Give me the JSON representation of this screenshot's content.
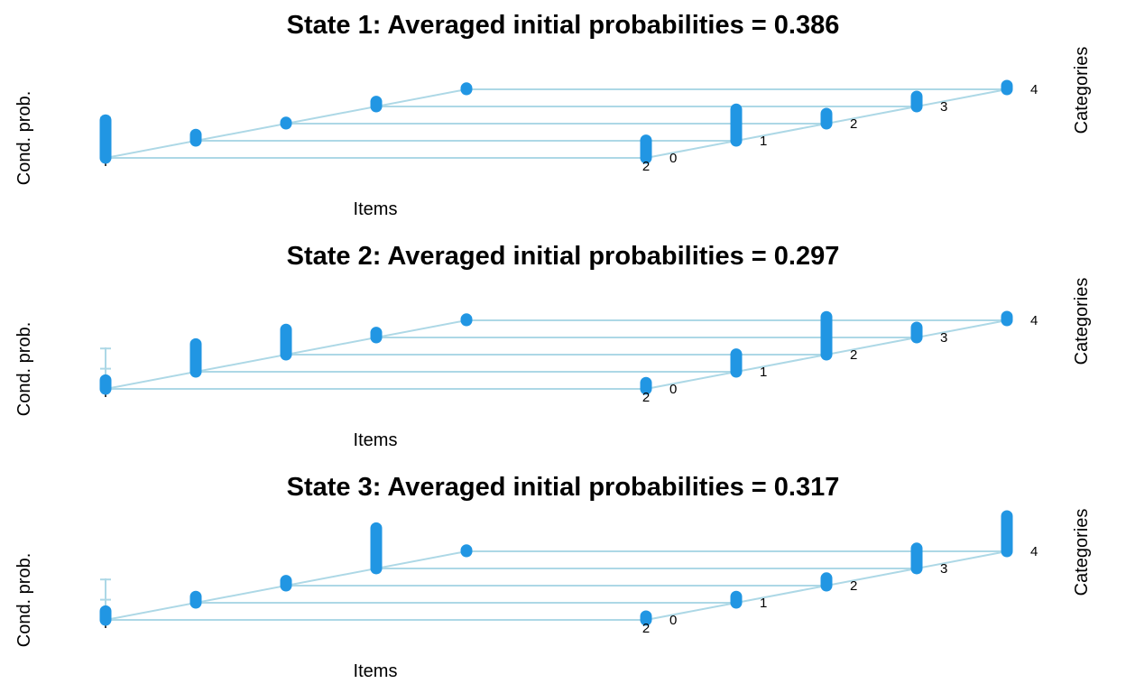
{
  "chart_data": [
    {
      "type": "3d-bar",
      "title": "State 1: Averaged initial probabilities = 0.386",
      "xlabel": "Items",
      "ylabel": "Cond. prob.",
      "zlabel": "Categories",
      "item_ticks": [
        "1",
        "2"
      ],
      "category_ticks": [
        "0",
        "1",
        "2",
        "3",
        "4"
      ],
      "series": [
        {
          "item": "1",
          "values": [
            0.32,
            0.07,
            0.03,
            0.06,
            0.03
          ]
        },
        {
          "item": "2",
          "values": [
            0.16,
            0.27,
            0.1,
            0.1,
            0.05
          ]
        }
      ],
      "colors": {
        "bar": "#2196e3",
        "grid": "#add8e6"
      }
    },
    {
      "type": "3d-bar",
      "title": "State 2: Averaged initial probabilities = 0.297",
      "xlabel": "Items",
      "ylabel": "Cond. prob.",
      "zlabel": "Categories",
      "item_ticks": [
        "1",
        "2"
      ],
      "category_ticks": [
        "0",
        "1",
        "2",
        "3",
        "4"
      ],
      "series": [
        {
          "item": "1",
          "values": [
            0.09,
            0.24,
            0.22,
            0.06,
            0.03
          ]
        },
        {
          "item": "2",
          "values": [
            0.07,
            0.16,
            0.32,
            0.1,
            0.05
          ]
        }
      ],
      "colors": {
        "bar": "#2196e3",
        "grid": "#add8e6"
      }
    },
    {
      "type": "3d-bar",
      "title": "State 3: Averaged initial probabilities = 0.317",
      "xlabel": "Items",
      "ylabel": "Cond. prob.",
      "zlabel": "Categories",
      "item_ticks": [
        "1",
        "2"
      ],
      "category_ticks": [
        "0",
        "1",
        "2",
        "3",
        "4"
      ],
      "series": [
        {
          "item": "1",
          "values": [
            0.09,
            0.07,
            0.06,
            0.34,
            0.03
          ]
        },
        {
          "item": "2",
          "values": [
            0.05,
            0.07,
            0.08,
            0.18,
            0.3
          ]
        }
      ],
      "colors": {
        "bar": "#2196e3",
        "grid": "#add8e6"
      }
    }
  ]
}
